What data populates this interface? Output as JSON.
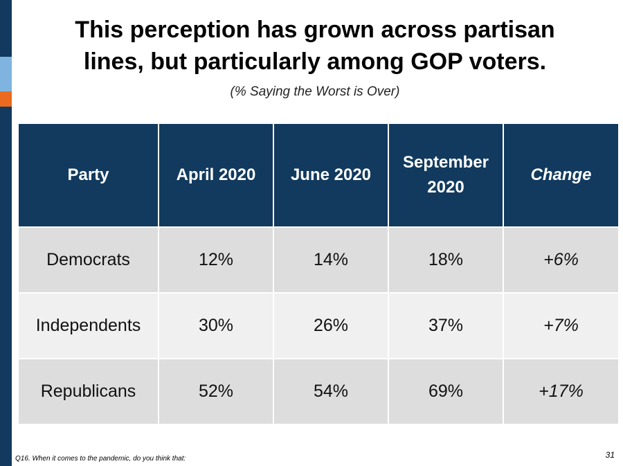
{
  "slide": {
    "title_line1": "This perception has grown across partisan",
    "title_line2": "lines, but particularly among GOP voters.",
    "subtitle": "(% Saying the Worst is Over)",
    "footnote": "Q16. When it comes to the pandemic, do you think that:",
    "page_number": "31"
  },
  "colors": {
    "header_bg": "#123a5e",
    "accent_light_blue": "#7fb4e0",
    "accent_orange": "#ea6b1f",
    "row_dark": "#dddddd",
    "row_light": "#f0f0f0"
  },
  "table": {
    "headers": [
      "Party",
      "April 2020",
      "June 2020",
      "September 2020",
      "Change"
    ],
    "rows": [
      [
        "Democrats",
        "12%",
        "14%",
        "18%",
        "+6%"
      ],
      [
        "Independents",
        "30%",
        "26%",
        "37%",
        "+7%"
      ],
      [
        "Republicans",
        "52%",
        "54%",
        "69%",
        "+17%"
      ]
    ]
  }
}
